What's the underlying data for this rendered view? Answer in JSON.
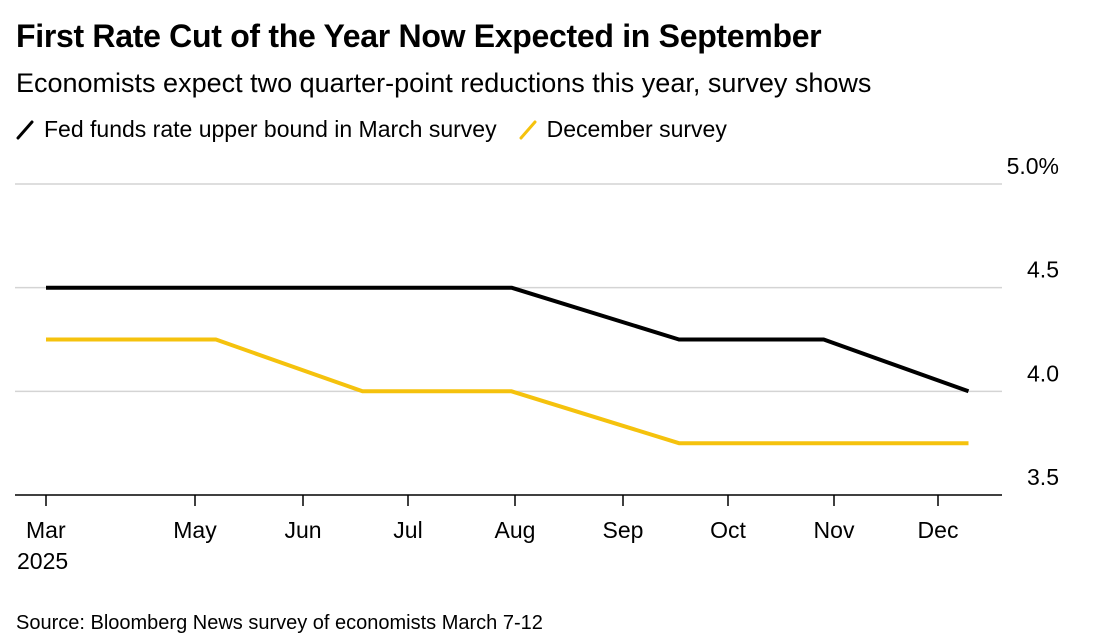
{
  "header": {
    "title": "First Rate Cut of the Year Now Expected in September",
    "subtitle": "Economists expect two quarter-point reductions this year, survey shows"
  },
  "legend": {
    "items": [
      {
        "label": "Fed funds rate upper bound in March survey",
        "color": "#000000"
      },
      {
        "label": "December survey",
        "color": "#f5c20d"
      }
    ]
  },
  "source": "Source: Bloomberg News survey of economists March 7-12",
  "chart_data": {
    "type": "line",
    "x_ticks": [
      {
        "label": "Mar",
        "sublabel": "2025"
      },
      {
        "label": "May"
      },
      {
        "label": "Jun"
      },
      {
        "label": "Jul"
      },
      {
        "label": "Aug"
      },
      {
        "label": "Sep"
      },
      {
        "label": "Oct"
      },
      {
        "label": "Nov"
      },
      {
        "label": "Dec"
      }
    ],
    "y_ticks": [
      "3.5",
      "4.0",
      "4.5",
      "5.0%"
    ],
    "ylim": [
      3.5,
      5.0
    ],
    "grid": true,
    "y_axis_position": "right",
    "legend_position": "top-left",
    "series": [
      {
        "color": "#000000",
        "x": [
          "2025-03-01",
          "2025-07-31",
          "2025-09-17",
          "2025-10-29",
          "2025-12-10"
        ],
        "y": [
          4.5,
          4.5,
          4.25,
          4.25,
          4.0
        ]
      },
      {
        "color": "#f5c20d",
        "x": [
          "2025-03-01",
          "2025-05-07",
          "2025-06-18",
          "2025-07-31",
          "2025-09-17",
          "2025-12-10"
        ],
        "y": [
          4.25,
          4.25,
          4.0,
          4.0,
          3.75,
          3.75
        ]
      }
    ]
  }
}
